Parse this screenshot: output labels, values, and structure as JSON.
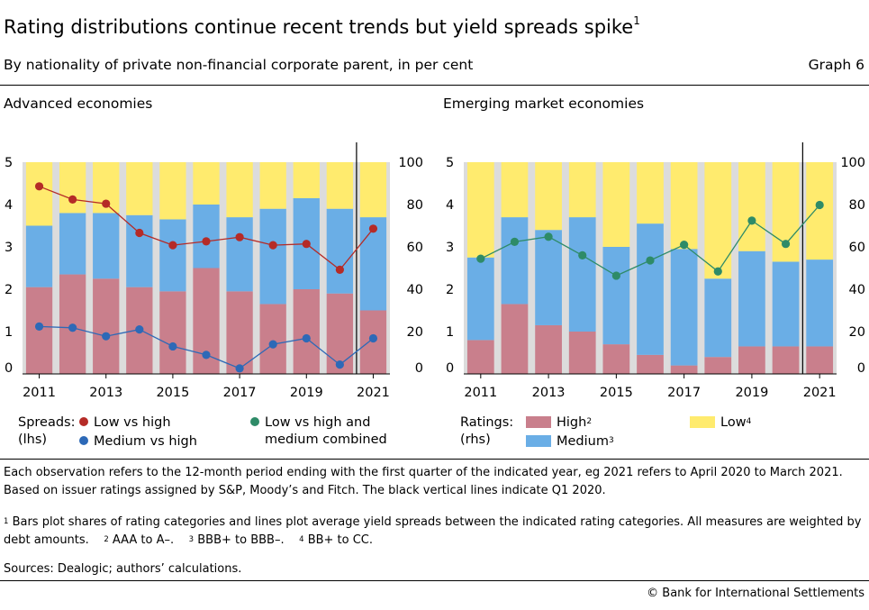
{
  "header": {
    "title": "Rating distributions continue recent trends but yield spreads spike",
    "title_note": "1",
    "subtitle": "By nationality of private non-financial corporate parent, in per cent",
    "graph_number": "Graph 6"
  },
  "colors": {
    "high": "#c97f8c",
    "medium": "#6aaee6",
    "low": "#ffeb6e",
    "plot_bg": "#dcdcdc",
    "line_low_high": "#b52b27",
    "line_medium_high": "#2d69b7",
    "line_combined": "#2e8b68"
  },
  "legend_left": {
    "group_label_1": "Spreads:",
    "group_label_2": "(lhs)",
    "low_vs_high": "Low vs high",
    "medium_vs_high": "Medium vs high",
    "combined_1": "Low vs high and",
    "combined_2": "medium combined"
  },
  "legend_right": {
    "group_label_1": "Ratings:",
    "group_label_2": "(rhs)",
    "high": "High",
    "high_note": "2",
    "medium": "Medium",
    "medium_note": "3",
    "low": "Low",
    "low_note": "4"
  },
  "notes": {
    "main": "Each observation refers to the 12-month period ending with the first quarter of the indicated year, eg 2021 refers to April 2020 to March 2021. Based on issuer ratings assigned by S&P, Moody’s and Fitch. The black vertical lines indicate Q1 2020.",
    "footnote_1_mark": "1",
    "footnote_1": "Bars plot shares of rating categories and lines plot average yield spreads between the indicated rating categories. All measures are weighted by debt amounts.",
    "footnote_2_mark": "2",
    "footnote_2": "AAA to A–.",
    "footnote_3_mark": "3",
    "footnote_3": "BBB+ to BBB–.",
    "footnote_4_mark": "4",
    "footnote_4": "BB+ to CC.",
    "sources": "Sources: Dealogic; authors’ calculations.",
    "copyright": "© Bank for International Settlements"
  },
  "chart_data": [
    {
      "type": "bar",
      "title": "Advanced economies",
      "stacked": true,
      "x": [
        2011,
        2012,
        2013,
        2014,
        2015,
        2016,
        2017,
        2018,
        2019,
        2020,
        2021
      ],
      "x_tick_labels": [
        "2011",
        "2013",
        "2015",
        "2017",
        "2019",
        "2021"
      ],
      "y_left": {
        "label": "lhs",
        "ylim": [
          0,
          5
        ],
        "ticks": [
          "0",
          "1",
          "2",
          "3",
          "4",
          "5"
        ]
      },
      "y_right": {
        "label": "rhs",
        "ylim": [
          0,
          100
        ],
        "ticks": [
          "0",
          "20",
          "40",
          "60",
          "80",
          "100"
        ]
      },
      "vertical_line_after": 2020,
      "bar_series": [
        {
          "name": "High",
          "axis": "rhs",
          "values": [
            41,
            47,
            45,
            41,
            39,
            50,
            39,
            33,
            40,
            38,
            30
          ]
        },
        {
          "name": "Medium",
          "axis": "rhs",
          "values": [
            29,
            29,
            31,
            34,
            34,
            30,
            35,
            45,
            43,
            40,
            44
          ]
        },
        {
          "name": "Low",
          "axis": "rhs",
          "values": [
            30,
            24,
            24,
            25,
            27,
            20,
            26,
            22,
            17,
            22,
            26
          ]
        }
      ],
      "line_series": [
        {
          "name": "Low vs high",
          "axis": "lhs",
          "values": [
            4.43,
            4.12,
            4.02,
            3.33,
            3.04,
            3.13,
            3.23,
            3.04,
            3.07,
            2.46,
            3.43
          ]
        },
        {
          "name": "Medium vs high",
          "axis": "lhs",
          "values": [
            1.12,
            1.09,
            0.89,
            1.05,
            0.65,
            0.45,
            0.13,
            0.7,
            0.84,
            0.22,
            0.84
          ]
        }
      ]
    },
    {
      "type": "bar",
      "title": "Emerging market economies",
      "stacked": true,
      "x": [
        2011,
        2012,
        2013,
        2014,
        2015,
        2016,
        2017,
        2018,
        2019,
        2020,
        2021
      ],
      "x_tick_labels": [
        "2011",
        "2013",
        "2015",
        "2017",
        "2019",
        "2021"
      ],
      "y_left": {
        "label": "lhs",
        "ylim": [
          0,
          5
        ],
        "ticks": [
          "0",
          "1",
          "2",
          "3",
          "4",
          "5"
        ]
      },
      "y_right": {
        "label": "rhs",
        "ylim": [
          0,
          100
        ],
        "ticks": [
          "0",
          "20",
          "40",
          "60",
          "80",
          "100"
        ]
      },
      "vertical_line_after": 2020,
      "bar_series": [
        {
          "name": "High",
          "axis": "rhs",
          "values": [
            16,
            33,
            23,
            20,
            14,
            9,
            4,
            8,
            13,
            13,
            13
          ]
        },
        {
          "name": "Medium",
          "axis": "rhs",
          "values": [
            39,
            41,
            45,
            54,
            46,
            62,
            55,
            37,
            45,
            40,
            41
          ]
        },
        {
          "name": "Low",
          "axis": "rhs",
          "values": [
            45,
            26,
            32,
            26,
            40,
            29,
            41,
            55,
            42,
            47,
            46
          ]
        }
      ],
      "line_series": [
        {
          "name": "Low vs high and medium combined",
          "axis": "lhs",
          "values": [
            2.72,
            3.12,
            3.24,
            2.8,
            2.32,
            2.68,
            3.05,
            2.42,
            3.62,
            3.07,
            3.99
          ]
        }
      ]
    }
  ]
}
